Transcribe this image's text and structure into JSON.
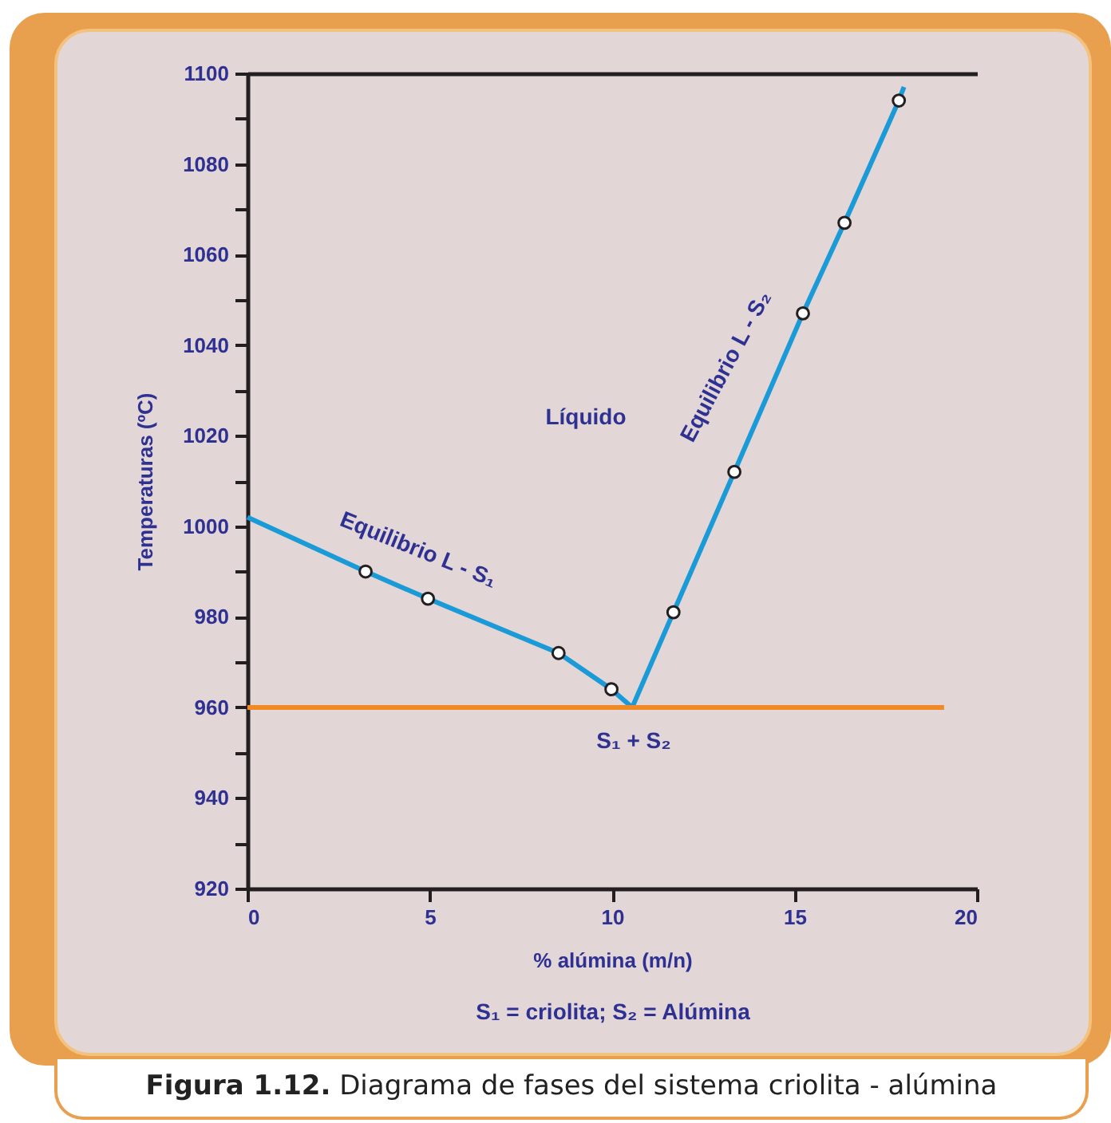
{
  "chart_data": {
    "type": "line",
    "xlabel": "% alúmina (m/n)",
    "ylabel": "Temperaturas (ºC)",
    "grid": false,
    "series": [
      {
        "color": "#1a9ad6",
        "marker": "none",
        "x": [
          0,
          3.24,
          4.95,
          8.53,
          9.98,
          10.55,
          11.68,
          13.35,
          15.23,
          16.37,
          17.86,
          18.0
        ],
        "values": [
          1002,
          990,
          984,
          972,
          964,
          960,
          981,
          1012,
          1047,
          1067,
          1094,
          1097
        ]
      },
      {
        "type": "scatter",
        "color": "#ffffff",
        "marker": "circle",
        "x": [
          3.24,
          4.95,
          8.53,
          9.98,
          11.68,
          13.35,
          15.23,
          16.37,
          17.86
        ],
        "values": [
          990,
          984,
          972,
          964,
          981,
          1012,
          1047,
          1067,
          1094
        ]
      },
      {
        "color": "#f08a24",
        "marker": "none",
        "x": [
          0,
          19.1
        ],
        "values": [
          960,
          960
        ]
      }
    ],
    "xlim": [
      0,
      20
    ],
    "xticks": [
      0,
      5,
      10,
      15,
      20
    ],
    "ylim": [
      920,
      1100
    ],
    "yticks": [
      920,
      {
        "value": 930,
        "label": null
      },
      940,
      {
        "value": 950,
        "label": null
      },
      960,
      {
        "value": 970,
        "label": null
      },
      980,
      {
        "value": 990,
        "label": null
      },
      1000,
      {
        "value": 1010,
        "label": null
      },
      1020,
      {
        "value": 1030,
        "label": null
      },
      1040,
      {
        "value": 1050,
        "label": null
      },
      1060,
      {
        "value": 1070,
        "label": null
      },
      1080,
      {
        "value": 1090,
        "label": null
      },
      1100
    ],
    "annotations": [
      "Líquido",
      "Equilibrio L - S₁",
      "Equilibrio L - S₂",
      "S₁ + S₂",
      "S₁ = criolita; S₂ = Alúmina",
      "Figura 1.12. Diagrama de fases del sistema criolita - alúmina"
    ]
  }
}
